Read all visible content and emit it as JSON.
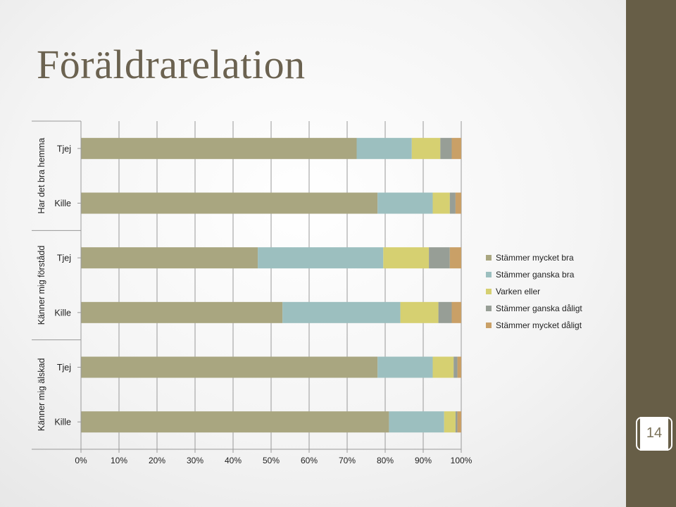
{
  "slide": {
    "title": "Föräldrarelation",
    "number": "14",
    "colors": {
      "band": "#675e47"
    }
  },
  "chart_data": {
    "type": "bar",
    "orientation": "horizontal",
    "stacked": "100%",
    "groups": [
      "Har det bra hemma",
      "Känner mig förstådd",
      "Känner mig älskad"
    ],
    "categories": [
      "Tjej",
      "Kille"
    ],
    "series": [
      {
        "name": "Stämmer mycket bra",
        "color": "#a9a680",
        "values": {
          "Har det bra hemma": [
            72.5,
            78
          ],
          "Känner mig förstådd": [
            46.5,
            53
          ],
          "Känner mig älskad": [
            78,
            81
          ]
        }
      },
      {
        "name": "Stämmer ganska bra",
        "color": "#9cbfbf",
        "values": {
          "Har det bra hemma": [
            14.5,
            14.5
          ],
          "Känner mig förstådd": [
            33,
            31
          ],
          "Känner mig älskad": [
            14.5,
            14.5
          ]
        }
      },
      {
        "name": "Varken eller",
        "color": "#d6d071",
        "values": {
          "Har det bra hemma": [
            7.5,
            4.5
          ],
          "Känner mig förstådd": [
            12,
            10
          ],
          "Känner mig älskad": [
            5.5,
            3
          ]
        }
      },
      {
        "name": "Stämmer ganska dåligt",
        "color": "#979e96",
        "values": {
          "Har det bra hemma": [
            3,
            1.5
          ],
          "Känner mig förstådd": [
            5.5,
            3.5
          ],
          "Känner mig älskad": [
            1,
            0.5
          ]
        }
      },
      {
        "name": "Stämmer mycket dåligt",
        "color": "#c9a067",
        "values": {
          "Har det bra hemma": [
            2.5,
            1.5
          ],
          "Känner mig förstådd": [
            3,
            2.5
          ],
          "Känner mig älskad": [
            1,
            1
          ]
        }
      }
    ],
    "xlim": [
      0,
      100
    ],
    "xticks": [
      "0%",
      "10%",
      "20%",
      "30%",
      "40%",
      "50%",
      "60%",
      "70%",
      "80%",
      "90%",
      "100%"
    ],
    "grid": true,
    "legend": "right"
  }
}
